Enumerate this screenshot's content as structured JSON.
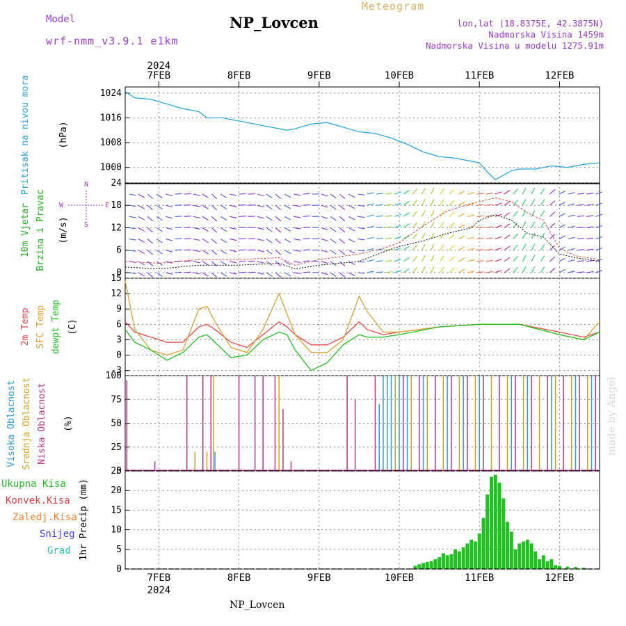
{
  "header": {
    "title": "NP_Lovcen",
    "model_label": "Model",
    "model_name": "wrf-nmm_v3.9.1 e1km",
    "meteogram_label": "Meteogram",
    "coords": "lon,lat (18.8375E, 42.3875N)",
    "altitude": "Nadmorska Visina 1459m",
    "model_altitude": "Nadmorska Visina u modelu 1275.91m"
  },
  "footer": {
    "station": "NP_Lovcen",
    "watermark": "made by Angel"
  },
  "time_axis": {
    "year_label": "2024",
    "ticks": [
      "7FEB",
      "8FEB",
      "9FEB",
      "10FEB",
      "11FEB",
      "12FEB"
    ],
    "range_days": [
      6.58,
      12.5
    ]
  },
  "colors": {
    "pressure": "#2aa7e0",
    "wind_speed": "#000000",
    "wind_gust": "#e04040",
    "temp_2m": "#e84848",
    "temp_sfc": "#e0a030",
    "dewpoint": "#22c022",
    "cloud_high": "#2a9ae0",
    "cloud_mid": "#d4a020",
    "cloud_low": "#c0308a",
    "precip_total": "#22c022",
    "precip_conv": "#e04040",
    "precip_freezing": "#f08030",
    "snow": "#4040e0",
    "hail": "#30c0c0"
  },
  "chart_data": [
    {
      "type": "line",
      "panel": "pressure",
      "ylabel_main": "Pritisak na nivou mora",
      "ylabel_unit": "(hPa)",
      "yticks": [
        1000,
        1008,
        1016,
        1024
      ],
      "ylim": [
        995,
        1026
      ],
      "x": [
        6.58,
        6.7,
        6.9,
        7.1,
        7.3,
        7.5,
        7.6,
        7.8,
        8.0,
        8.2,
        8.4,
        8.6,
        8.7,
        8.9,
        9.1,
        9.3,
        9.5,
        9.7,
        9.9,
        10.1,
        10.3,
        10.5,
        10.7,
        10.9,
        11.0,
        11.1,
        11.2,
        11.3,
        11.4,
        11.5,
        11.7,
        11.9,
        12.1,
        12.3,
        12.5
      ],
      "y": [
        1024.5,
        1022.5,
        1022,
        1020.5,
        1019,
        1018,
        1016,
        1016,
        1015,
        1014,
        1013,
        1012,
        1012.5,
        1014,
        1014.5,
        1013,
        1011.5,
        1011,
        1009.5,
        1007.5,
        1005,
        1003.5,
        1003,
        1002,
        1001.5,
        998.5,
        996,
        997.5,
        999,
        999.5,
        999.5,
        1000.5,
        1000,
        1001,
        1001.5
      ]
    },
    {
      "type": "line",
      "panel": "wind",
      "ylabel_main": "10m Vjetar",
      "ylabel_sub": "Brzina i Pravac",
      "ylabel_unit": "(m/s)",
      "direction_legend": [
        "N",
        "W",
        "E",
        "S"
      ],
      "yticks": [
        0,
        6,
        12,
        18,
        24
      ],
      "ylim": [
        -1.5,
        24
      ],
      "series": [
        {
          "role": "speed",
          "x": [
            6.58,
            7.0,
            7.5,
            8.0,
            8.5,
            8.7,
            9.0,
            9.5,
            9.8,
            10.0,
            10.3,
            10.6,
            10.9,
            11.0,
            11.2,
            11.4,
            11.6,
            11.8,
            12.0,
            12.2,
            12.5
          ],
          "y": [
            1.5,
            1.0,
            2.0,
            2.0,
            2.5,
            1.0,
            2.0,
            3.0,
            5.5,
            7.0,
            8.5,
            10.5,
            12.0,
            14.0,
            15.5,
            14.0,
            10.5,
            9.5,
            5.0,
            4.0,
            3.0
          ]
        },
        {
          "role": "gust",
          "x": [
            6.58,
            7.0,
            7.5,
            8.0,
            8.5,
            8.7,
            9.0,
            9.5,
            9.8,
            10.0,
            10.3,
            10.6,
            10.9,
            11.0,
            11.2,
            11.4,
            11.6,
            11.8,
            12.0,
            12.2,
            12.5
          ],
          "y": [
            3.0,
            2.5,
            3.5,
            3.5,
            4.0,
            2.0,
            3.5,
            5.0,
            6.5,
            8.0,
            12.5,
            16.5,
            18.5,
            19.0,
            20.0,
            19.0,
            16.0,
            14.0,
            6.5,
            4.5,
            3.5
          ]
        }
      ]
    },
    {
      "type": "line",
      "panel": "temperature",
      "ylabel_lines": [
        "2m Temp",
        "SFC Temp",
        "dewpt Temp"
      ],
      "ylabel_unit": "(C)",
      "yticks": [
        -3,
        0,
        3,
        6,
        9,
        12,
        15
      ],
      "ylim": [
        -4,
        15
      ],
      "series": [
        {
          "name": "2m Temp",
          "x": [
            6.58,
            6.7,
            6.9,
            7.1,
            7.3,
            7.5,
            7.6,
            7.7,
            7.9,
            8.1,
            8.3,
            8.5,
            8.6,
            8.7,
            8.9,
            9.1,
            9.3,
            9.5,
            9.6,
            9.8,
            10.0,
            10.5,
            11.0,
            11.5,
            12.0,
            12.3,
            12.5
          ],
          "y": [
            6.5,
            4.5,
            3.5,
            2.5,
            2.5,
            5.5,
            6.0,
            5.0,
            2.5,
            1.5,
            4.0,
            6.5,
            5.5,
            4.0,
            2.0,
            2.0,
            3.5,
            6.5,
            5.0,
            4.0,
            4.5,
            5.5,
            6.0,
            6.0,
            4.5,
            3.5,
            4.5
          ]
        },
        {
          "name": "SFC Temp",
          "x": [
            6.58,
            6.7,
            6.9,
            7.1,
            7.3,
            7.5,
            7.6,
            7.7,
            7.9,
            8.1,
            8.3,
            8.5,
            8.6,
            8.7,
            8.9,
            9.1,
            9.3,
            9.5,
            9.6,
            9.8,
            10.0,
            10.5,
            11.0,
            11.5,
            12.0,
            12.3,
            12.5
          ],
          "y": [
            14.5,
            5.0,
            1.0,
            0.0,
            1.0,
            9.0,
            9.5,
            6.5,
            1.5,
            0.5,
            5.0,
            12.0,
            8.0,
            4.0,
            0.5,
            0.5,
            3.0,
            11.5,
            8.5,
            4.5,
            4.5,
            5.5,
            6.0,
            6.0,
            4.0,
            3.0,
            6.5
          ]
        },
        {
          "name": "dewpt Temp",
          "x": [
            6.58,
            6.7,
            6.9,
            7.1,
            7.3,
            7.5,
            7.6,
            7.7,
            7.9,
            8.1,
            8.3,
            8.5,
            8.6,
            8.7,
            8.9,
            9.1,
            9.3,
            9.5,
            9.6,
            9.8,
            10.0,
            10.5,
            11.0,
            11.5,
            12.0,
            12.3,
            12.5
          ],
          "y": [
            5.0,
            2.5,
            1.0,
            -1.0,
            0.5,
            3.5,
            4.0,
            2.5,
            -0.5,
            0.0,
            3.0,
            4.5,
            4.0,
            1.0,
            -3.0,
            -1.5,
            2.0,
            4.0,
            3.5,
            3.5,
            4.0,
            5.5,
            6.0,
            6.0,
            4.0,
            3.0,
            4.5
          ]
        }
      ]
    },
    {
      "type": "bar",
      "panel": "clouds",
      "ylabel_lines": [
        "Visoka Oblacnost",
        "Srednja Oblacnost",
        "Niska Oblacnost"
      ],
      "ylabel_unit": "(%)",
      "yticks": [
        0,
        25,
        50,
        75,
        100
      ],
      "ylim": [
        0,
        100
      ],
      "series": [
        {
          "name": "Visoka Oblacnost",
          "x": [
            7.65,
            7.7,
            9.75,
            9.8,
            9.85,
            9.9,
            10.0,
            10.1,
            10.3,
            10.6,
            10.8,
            11.0,
            11.4,
            11.6,
            11.9,
            12.2,
            12.4
          ],
          "y": [
            20,
            20,
            70,
            100,
            100,
            100,
            100,
            100,
            100,
            100,
            100,
            100,
            100,
            100,
            100,
            100,
            100
          ]
        },
        {
          "name": "Srednja Oblacnost",
          "x": [
            7.45,
            7.6,
            7.68,
            8.5,
            9.95,
            10.15,
            10.35,
            10.55,
            10.75,
            10.95,
            11.15,
            11.35,
            11.55,
            11.75,
            11.95,
            12.15,
            12.35
          ],
          "y": [
            20,
            20,
            100,
            100,
            100,
            100,
            100,
            100,
            100,
            100,
            100,
            100,
            100,
            100,
            100,
            100,
            100
          ]
        },
        {
          "name": "Niska Oblacnost",
          "x": [
            6.6,
            6.95,
            7.35,
            7.55,
            7.65,
            8.0,
            8.2,
            8.3,
            8.45,
            8.55,
            8.65,
            9.35,
            9.45,
            9.7,
            10.05,
            10.25,
            10.45,
            10.65,
            10.85,
            11.05,
            11.25,
            11.45,
            11.65,
            11.85,
            12.05,
            12.25,
            12.45
          ],
          "y": [
            95,
            10,
            100,
            100,
            100,
            100,
            100,
            100,
            100,
            65,
            10,
            100,
            75,
            100,
            100,
            100,
            100,
            100,
            100,
            100,
            100,
            100,
            100,
            100,
            100,
            100,
            100
          ]
        }
      ]
    },
    {
      "type": "bar",
      "panel": "precip",
      "legend": [
        "Ukupna Kisa",
        "Konvek.Kisa",
        "Zaledj.Kisa",
        "Snijeg",
        "Grad"
      ],
      "ylabel": "1hr Precip (mm)",
      "yticks": [
        0,
        5,
        10,
        15,
        20,
        25
      ],
      "ylim": [
        0,
        25
      ],
      "series": [
        {
          "name": "Ukupna Kisa",
          "x": [
            10.2,
            10.25,
            10.3,
            10.35,
            10.4,
            10.45,
            10.5,
            10.55,
            10.6,
            10.65,
            10.7,
            10.75,
            10.8,
            10.85,
            10.9,
            10.95,
            11.0,
            11.05,
            11.1,
            11.15,
            11.2,
            11.25,
            11.3,
            11.35,
            11.4,
            11.45,
            11.5,
            11.55,
            11.6,
            11.65,
            11.7,
            11.75,
            11.8,
            11.85,
            11.9,
            11.95,
            12.0,
            12.1,
            12.2,
            12.3
          ],
          "y": [
            0.8,
            1.2,
            1.5,
            1.8,
            2.0,
            2.5,
            3.0,
            4.0,
            3.5,
            3.8,
            5.0,
            4.5,
            5.5,
            6.5,
            7.5,
            7.0,
            9.0,
            13.0,
            19.0,
            23.5,
            24.0,
            22.0,
            18.0,
            12.0,
            9.5,
            5.0,
            6.5,
            7.0,
            7.5,
            6.5,
            4.5,
            2.5,
            3.5,
            2.0,
            2.5,
            1.0,
            0.8,
            0.6,
            0.5,
            0.3
          ]
        }
      ]
    }
  ]
}
